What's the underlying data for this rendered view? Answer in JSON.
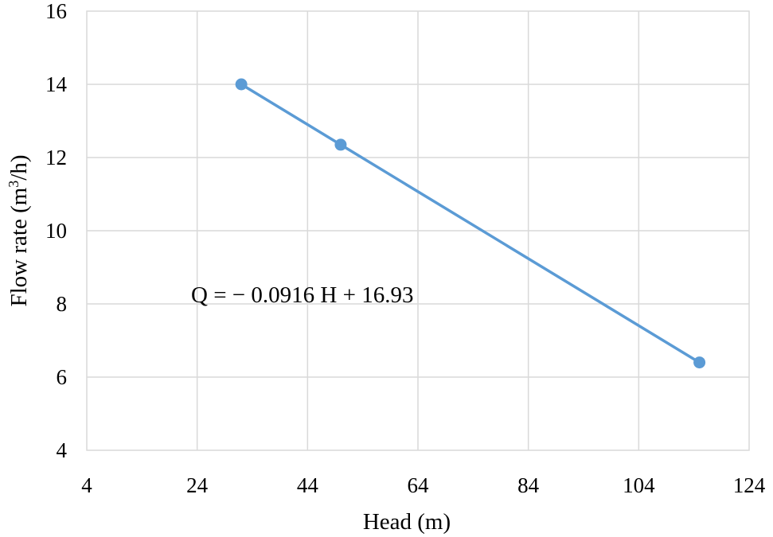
{
  "chart_data": {
    "type": "scatter",
    "xlabel": "Head (m)",
    "ylabel": "Flow rate (m³/h)",
    "xlim": [
      4,
      124
    ],
    "ylim": [
      4,
      16
    ],
    "xticks": [
      4,
      24,
      44,
      64,
      84,
      104,
      124
    ],
    "yticks": [
      4,
      6,
      8,
      10,
      12,
      14,
      16
    ],
    "grid": true,
    "legend": "none",
    "series": [
      {
        "x": [
          32,
          50,
          115
        ],
        "y": [
          14.0,
          12.35,
          6.4
        ],
        "color": "#5b9bd5",
        "line": true,
        "markers": true
      }
    ],
    "annotations": [
      {
        "text": "Q = − 0.0916 H + 16.93"
      }
    ]
  }
}
